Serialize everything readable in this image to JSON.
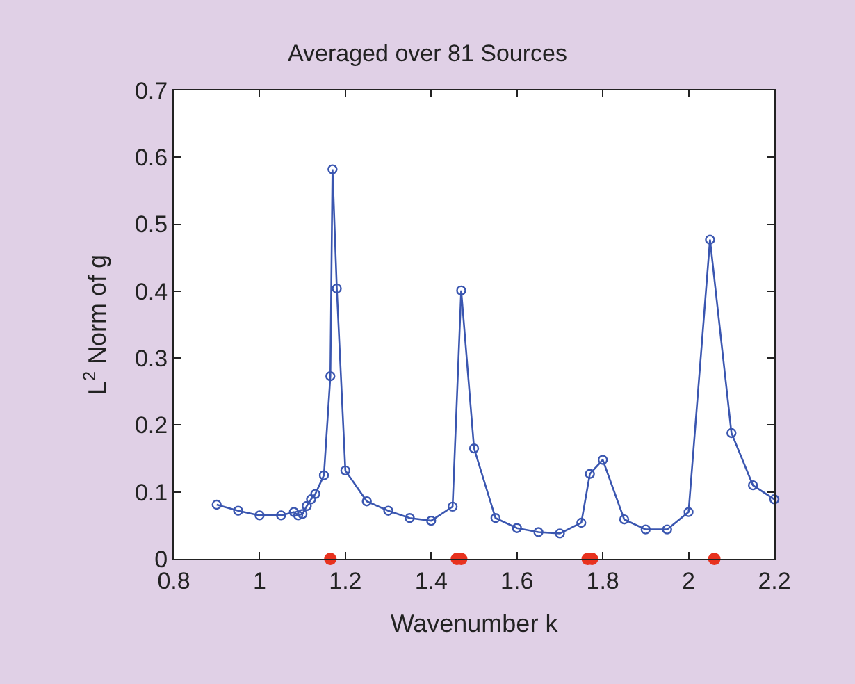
{
  "chart_data": {
    "type": "line",
    "title": "Averaged over 81 Sources",
    "xlabel": "Wavenumber k",
    "ylabel": "L$^{2}$ Norm of g",
    "xlim": [
      0.8,
      2.2
    ],
    "xticks": [
      0.8,
      1,
      1.2,
      1.4,
      1.6,
      1.8,
      2,
      2.2
    ],
    "ylim": [
      0,
      0.7
    ],
    "yticks": [
      0,
      0.1,
      0.2,
      0.3,
      0.4,
      0.5,
      0.6,
      0.7
    ],
    "series": [
      {
        "color": "#3a56b0",
        "marker": "circle",
        "line_style": "solid",
        "x": [
          0.9,
          0.95,
          1.0,
          1.05,
          1.08,
          1.09,
          1.1,
          1.11,
          1.12,
          1.13,
          1.15,
          1.165,
          1.17,
          1.18,
          1.2,
          1.25,
          1.3,
          1.35,
          1.4,
          1.45,
          1.47,
          1.5,
          1.55,
          1.6,
          1.65,
          1.7,
          1.75,
          1.77,
          1.8,
          1.85,
          1.9,
          1.95,
          2.0,
          2.05,
          2.1,
          2.15,
          2.2
        ],
        "values": [
          0.081,
          0.072,
          0.065,
          0.065,
          0.07,
          0.065,
          0.067,
          0.079,
          0.089,
          0.097,
          0.125,
          0.273,
          0.582,
          0.404,
          0.132,
          0.086,
          0.072,
          0.061,
          0.057,
          0.078,
          0.401,
          0.165,
          0.061,
          0.046,
          0.04,
          0.038,
          0.054,
          0.127,
          0.148,
          0.059,
          0.044,
          0.044,
          0.07,
          0.477,
          0.188,
          0.11,
          0.089
        ]
      },
      {
        "type": "scatter",
        "color": "#e8321e",
        "marker": "circle",
        "x": [
          1.165,
          1.46,
          1.47,
          1.765,
          1.775,
          2.06
        ],
        "values": [
          0,
          0,
          0,
          0,
          0,
          0
        ]
      }
    ]
  }
}
